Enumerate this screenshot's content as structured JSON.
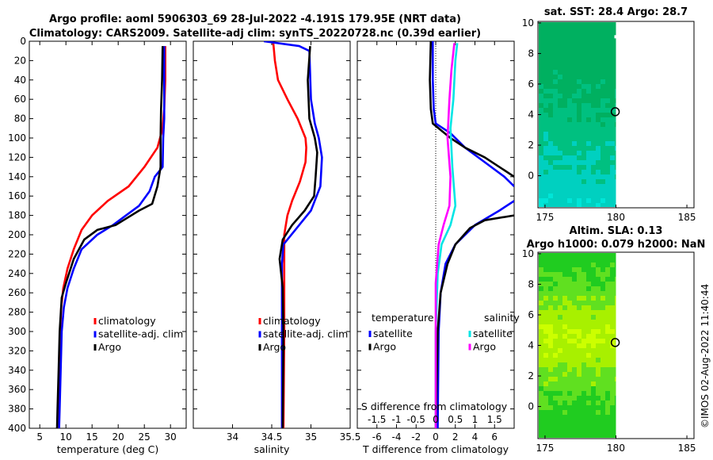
{
  "figure": {
    "title_line1": "Argo profile: aoml 5906303_69 28-Jul-2022 -4.191S 179.95E (NRT data)",
    "title_line2": "Climatology: CARS2009. Satellite-adj clim: synTS_20220728.nc (0.39d earlier)",
    "credit": "©IMOS 02-Aug-2022 11:40:44"
  },
  "colors": {
    "climatology": "#ff0000",
    "satellite": "#0000ff",
    "argo": "#000000",
    "satellite_salinity": "#00e5e5",
    "argo_salinity": "#ff00ff"
  },
  "chart_data": [
    {
      "id": "temperature",
      "type": "line",
      "xlabel": "temperature (deg C)",
      "xlim": [
        3,
        33
      ],
      "ylim": [
        0,
        400
      ],
      "xticks": [
        5,
        10,
        15,
        20,
        25,
        30
      ],
      "yticks": [
        0,
        20,
        40,
        60,
        80,
        100,
        120,
        140,
        160,
        180,
        200,
        220,
        240,
        260,
        280,
        300,
        320,
        340,
        360,
        380,
        400
      ],
      "legend": [
        "climatology",
        "satellite-adj. clim",
        "Argo"
      ],
      "series": [
        {
          "name": "climatology",
          "color": "#ff0000",
          "points": [
            [
              29.0,
              5
            ],
            [
              29.0,
              40
            ],
            [
              28.8,
              70
            ],
            [
              28.5,
              90
            ],
            [
              27.5,
              110
            ],
            [
              25,
              130
            ],
            [
              22,
              150
            ],
            [
              18,
              165
            ],
            [
              15,
              180
            ],
            [
              13,
              195
            ],
            [
              11.5,
              215
            ],
            [
              10.3,
              235
            ],
            [
              9.5,
              255
            ],
            [
              9.1,
              275
            ],
            [
              8.9,
              300
            ],
            [
              8.7,
              340
            ],
            [
              8.6,
              380
            ],
            [
              8.5,
              400
            ]
          ]
        },
        {
          "name": "satellite-adj. clim",
          "color": "#0000ff",
          "points": [
            [
              28.8,
              5
            ],
            [
              28.8,
              80
            ],
            [
              28.6,
              100
            ],
            [
              28.5,
              130
            ],
            [
              27,
              140
            ],
            [
              26,
              155
            ],
            [
              24,
              170
            ],
            [
              21.5,
              180
            ],
            [
              19,
              190
            ],
            [
              16,
              200
            ],
            [
              13,
              215
            ],
            [
              11.5,
              235
            ],
            [
              10.3,
              255
            ],
            [
              9.6,
              275
            ],
            [
              9.2,
              300
            ],
            [
              9,
              340
            ],
            [
              8.8,
              380
            ],
            [
              8.7,
              400
            ]
          ]
        },
        {
          "name": "Argo",
          "color": "#000000",
          "points": [
            [
              28.5,
              5
            ],
            [
              28.4,
              40
            ],
            [
              28.2,
              70
            ],
            [
              28.1,
              100
            ],
            [
              28.1,
              130
            ],
            [
              27.5,
              150
            ],
            [
              26.5,
              168
            ],
            [
              24,
              175
            ],
            [
              21,
              185
            ],
            [
              19.5,
              190
            ],
            [
              16,
              195
            ],
            [
              13.5,
              205
            ],
            [
              11.5,
              225
            ],
            [
              10,
              250
            ],
            [
              9.2,
              265
            ],
            [
              8.8,
              300
            ],
            [
              8.6,
              340
            ],
            [
              8.4,
              380
            ],
            [
              8.3,
              400
            ]
          ]
        }
      ]
    },
    {
      "id": "salinity",
      "type": "line",
      "xlabel": "salinity",
      "xlim": [
        33.5,
        35.5
      ],
      "ylim": [
        0,
        400
      ],
      "xticks": [
        34,
        34.5,
        35,
        35.5
      ],
      "legend": [
        "climatology",
        "satellite-adj. clim",
        "Argo"
      ],
      "series": [
        {
          "name": "climatology",
          "color": "#ff0000",
          "points": [
            [
              34.52,
              2
            ],
            [
              34.54,
              20
            ],
            [
              34.58,
              40
            ],
            [
              34.7,
              60
            ],
            [
              34.83,
              80
            ],
            [
              34.93,
              100
            ],
            [
              34.94,
              110
            ],
            [
              34.93,
              125
            ],
            [
              34.86,
              145
            ],
            [
              34.76,
              165
            ],
            [
              34.7,
              180
            ],
            [
              34.66,
              200
            ],
            [
              34.66,
              230
            ],
            [
              34.66,
              300
            ],
            [
              34.65,
              400
            ]
          ]
        },
        {
          "name": "satellite-adj. clim",
          "color": "#0000ff",
          "points": [
            [
              34.4,
              0
            ],
            [
              34.85,
              5
            ],
            [
              34.98,
              10
            ],
            [
              35.0,
              60
            ],
            [
              35.05,
              85
            ],
            [
              35.1,
              100
            ],
            [
              35.14,
              120
            ],
            [
              35.12,
              150
            ],
            [
              35.0,
              175
            ],
            [
              34.8,
              195
            ],
            [
              34.65,
              210
            ],
            [
              34.63,
              230
            ],
            [
              34.63,
              300
            ],
            [
              34.63,
              400
            ]
          ]
        },
        {
          "name": "Argo",
          "color": "#000000",
          "points": [
            [
              34.99,
              5
            ],
            [
              34.96,
              40
            ],
            [
              34.97,
              60
            ],
            [
              34.98,
              80
            ],
            [
              35.05,
              100
            ],
            [
              35.08,
              115
            ],
            [
              35.06,
              140
            ],
            [
              35.04,
              160
            ],
            [
              34.92,
              175
            ],
            [
              34.76,
              190
            ],
            [
              34.64,
              205
            ],
            [
              34.6,
              225
            ],
            [
              34.64,
              255
            ],
            [
              34.65,
              300
            ],
            [
              34.64,
              400
            ]
          ]
        }
      ]
    },
    {
      "id": "difference",
      "type": "line",
      "xlabel": "T difference from climatology",
      "xlabel_top": "S difference from climatology",
      "xlim": [
        -8,
        8
      ],
      "ylim": [
        0,
        400
      ],
      "xticks": [
        -6,
        -4,
        -2,
        0,
        2,
        4,
        6
      ],
      "sticks": [
        "-1.5",
        "-1",
        "-0.5",
        "0",
        "0.5",
        "1",
        "1.5"
      ],
      "sticks_values": [
        -1.5,
        -1,
        -0.5,
        0,
        0.5,
        1,
        1.5
      ],
      "s_scale": 4,
      "legend_left_title": "temperature",
      "legend_right_title": "salinity",
      "legend_left": [
        "satellite",
        "Argo"
      ],
      "legend_right": [
        "satellite",
        "Argo"
      ],
      "series": [
        {
          "name": "T satellite",
          "color": "#0000ff",
          "points": [
            [
              -0.3,
              0
            ],
            [
              -0.3,
              40
            ],
            [
              -0.2,
              70
            ],
            [
              0,
              85
            ],
            [
              1.5,
              95
            ],
            [
              3,
              110
            ],
            [
              5,
              125
            ],
            [
              7,
              140
            ],
            [
              8,
              150
            ]
          ]
        },
        {
          "name": "T satellite lower",
          "color": "#0000ff",
          "points": [
            [
              8,
              165
            ],
            [
              6.5,
              175
            ],
            [
              4,
              190
            ],
            [
              2,
              210
            ],
            [
              1,
              230
            ],
            [
              0.5,
              260
            ],
            [
              0.3,
              300
            ],
            [
              0.2,
              400
            ]
          ]
        },
        {
          "name": "T Argo",
          "color": "#000000",
          "points": [
            [
              -0.5,
              0
            ],
            [
              -0.6,
              40
            ],
            [
              -0.5,
              70
            ],
            [
              -0.3,
              85
            ],
            [
              1.5,
              100
            ],
            [
              3,
              110
            ],
            [
              5,
              120
            ],
            [
              8,
              140
            ]
          ]
        },
        {
          "name": "T Argo lower",
          "color": "#000000",
          "points": [
            [
              8,
              180
            ],
            [
              5,
              185
            ],
            [
              3.5,
              193
            ],
            [
              2,
              210
            ],
            [
              1.2,
              230
            ],
            [
              0.5,
              260
            ],
            [
              0.2,
              300
            ],
            [
              0,
              400
            ]
          ]
        },
        {
          "name": "S satellite",
          "color": "#00e5e5",
          "points": [
            [
              2.2,
              2
            ],
            [
              2.0,
              20
            ],
            [
              1.8,
              60
            ],
            [
              1.5,
              90
            ],
            [
              1.7,
              130
            ],
            [
              2,
              170
            ],
            [
              1.5,
              190
            ],
            [
              0.6,
              210
            ],
            [
              0.2,
              240
            ],
            [
              0,
              300
            ],
            [
              0,
              400
            ]
          ]
        },
        {
          "name": "S Argo",
          "color": "#ff00ff",
          "points": [
            [
              1.9,
              2
            ],
            [
              1.6,
              30
            ],
            [
              1.4,
              60
            ],
            [
              1.2,
              100
            ],
            [
              1.5,
              140
            ],
            [
              1.4,
              170
            ],
            [
              0.8,
              190
            ],
            [
              0.3,
              210
            ],
            [
              0,
              250
            ],
            [
              0,
              300
            ],
            [
              0,
              400
            ]
          ]
        }
      ]
    },
    {
      "id": "sst_map",
      "type": "heatmap",
      "title": "sat. SST: 28.4 Argo: 28.7",
      "xlim": [
        174.5,
        185.5
      ],
      "ylim": [
        -2.1,
        10.1
      ],
      "xticks": [
        175,
        180,
        185
      ],
      "yticks": [
        0,
        2,
        4,
        6,
        8,
        10
      ],
      "ytick_labels": [
        "0",
        "2",
        "4",
        "6",
        "8",
        "10"
      ],
      "marker": [
        179.95,
        4.19
      ],
      "colors": [
        "#00b060",
        "#00c080",
        "#00d0c0",
        "#00e5d8"
      ]
    },
    {
      "id": "sla_map",
      "type": "heatmap",
      "title_line1": "Altim. SLA: 0.13",
      "title_line2": "Argo h1000: 0.079 h2000: NaN",
      "xlim": [
        174.5,
        185.5
      ],
      "ylim": [
        -2.1,
        10.1
      ],
      "xticks": [
        175,
        180,
        185
      ],
      "yticks": [
        0,
        2,
        4,
        6,
        8,
        10
      ],
      "ytick_labels": [
        "0",
        "2",
        "4",
        "6",
        "8",
        "10"
      ],
      "marker": [
        179.95,
        4.19
      ],
      "colors": [
        "#20cc20",
        "#60e020",
        "#a8f000",
        "#ccff00"
      ]
    }
  ]
}
